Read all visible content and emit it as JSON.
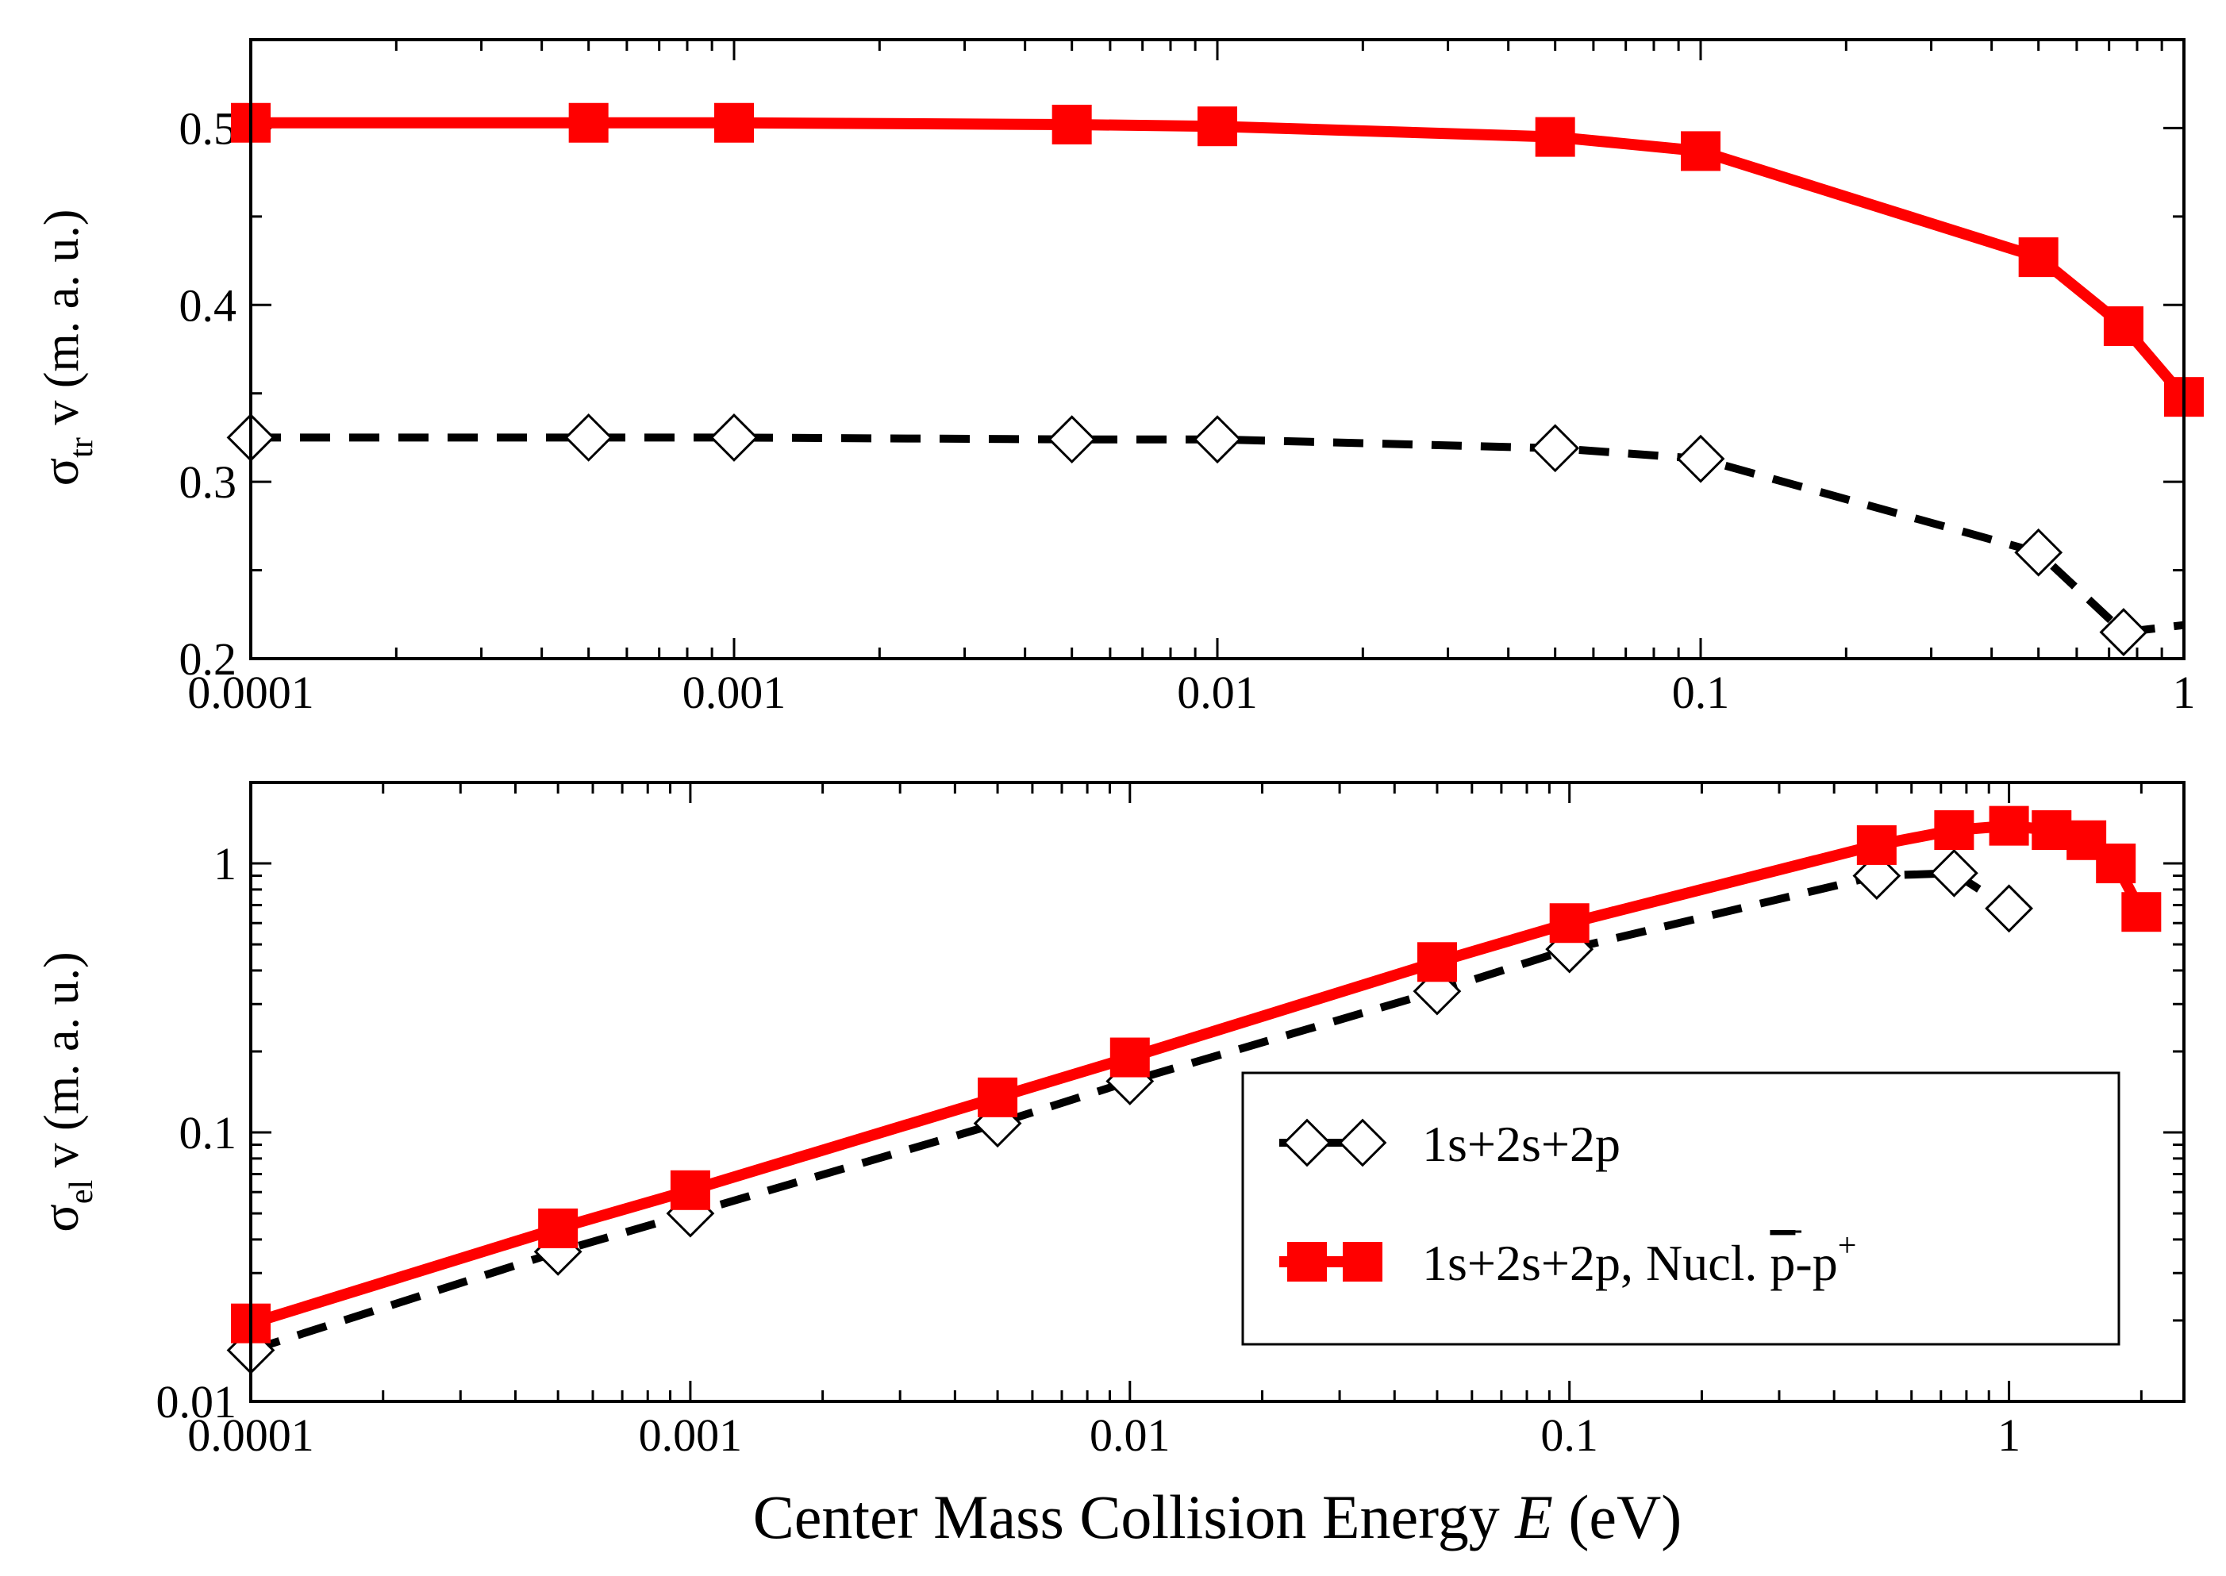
{
  "colors": {
    "series_red": "#ff0000",
    "series_black": "#000000",
    "background": "#ffffff"
  },
  "chart_data": [
    {
      "type": "line",
      "xscale": "log",
      "yscale": "linear",
      "xlim": [
        0.0001,
        1
      ],
      "ylim": [
        0.2,
        0.55
      ],
      "xticks": [
        0.0001,
        0.001,
        0.01,
        0.1,
        1
      ],
      "xtick_labels": [
        "0.0001",
        "0.001",
        "0.01",
        "0.1",
        "1"
      ],
      "yticks": [
        0.2,
        0.3,
        0.4,
        0.5
      ],
      "ytick_labels": [
        "0.2",
        "0.3",
        "0.4",
        "0.5"
      ],
      "ylabel": {
        "symbol": "σ",
        "subscript": "tr",
        "rest": " v (m. a. u.)"
      },
      "xlabel": "",
      "series": [
        {
          "name": "1s+2s+2p, Nucl. p-p+",
          "color": "#ff0000",
          "style": "solid",
          "marker": "square",
          "x": [
            0.0001,
            0.0005,
            0.001,
            0.005,
            0.01,
            0.05,
            0.1,
            0.5,
            0.75,
            1.0
          ],
          "y": [
            0.503,
            0.503,
            0.503,
            0.502,
            0.501,
            0.495,
            0.487,
            0.427,
            0.388,
            0.348
          ]
        },
        {
          "name": "1s+2s+2p",
          "color": "#000000",
          "style": "dashed",
          "marker": "diamond",
          "x": [
            0.0001,
            0.0005,
            0.001,
            0.005,
            0.01,
            0.05,
            0.1,
            0.5,
            0.75,
            1.0
          ],
          "y": [
            0.325,
            0.325,
            0.325,
            0.324,
            0.324,
            0.319,
            0.313,
            0.26,
            0.215,
            0.219
          ],
          "marker_indices": [
            0,
            1,
            2,
            3,
            4,
            5,
            6,
            7,
            8
          ]
        }
      ]
    },
    {
      "type": "line",
      "xscale": "log",
      "yscale": "log",
      "xlim": [
        0.0001,
        2.5
      ],
      "ylim": [
        0.01,
        2
      ],
      "xticks": [
        0.0001,
        0.001,
        0.01,
        0.1,
        1
      ],
      "xtick_labels": [
        "0.0001",
        "0.001",
        "0.01",
        "0.1",
        "1"
      ],
      "yticks": [
        0.01,
        0.1,
        1
      ],
      "ytick_labels": [
        "0.01",
        "0.1",
        "1"
      ],
      "ylabel": {
        "symbol": "σ",
        "subscript": "el",
        "rest": " v (m. a. u.)"
      },
      "xlabel": {
        "text": "Center Mass Collision Energy ",
        "italic": "E",
        "unit": "  (eV)"
      },
      "series": [
        {
          "name": "1s+2s+2p, Nucl. p-p+",
          "color": "#ff0000",
          "style": "solid",
          "marker": "square",
          "x": [
            0.0001,
            0.0005,
            0.001,
            0.005,
            0.01,
            0.05,
            0.1,
            0.5,
            0.75,
            1.0,
            1.25,
            1.5,
            1.75,
            2.0
          ],
          "y": [
            0.0195,
            0.044,
            0.061,
            0.135,
            0.19,
            0.43,
            0.6,
            1.17,
            1.33,
            1.38,
            1.33,
            1.22,
            1.0,
            0.66
          ]
        },
        {
          "name": "1s+2s+2p",
          "color": "#000000",
          "style": "dashed",
          "marker": "diamond",
          "x": [
            0.0001,
            0.0005,
            0.001,
            0.005,
            0.01,
            0.05,
            0.1,
            0.5,
            0.75,
            1.0
          ],
          "y": [
            0.0155,
            0.036,
            0.05,
            0.108,
            0.155,
            0.335,
            0.48,
            0.9,
            0.92,
            0.68
          ]
        }
      ],
      "legend": {
        "placement": "bottom-right",
        "entries": [
          {
            "label": "1s+2s+2p",
            "series": 1
          },
          {
            "label_main": "1s+2s+2p, Nucl. ",
            "label_pbar": "p",
            "label_mid": "-p",
            "label_sup": "+",
            "series": 0
          }
        ]
      }
    }
  ]
}
